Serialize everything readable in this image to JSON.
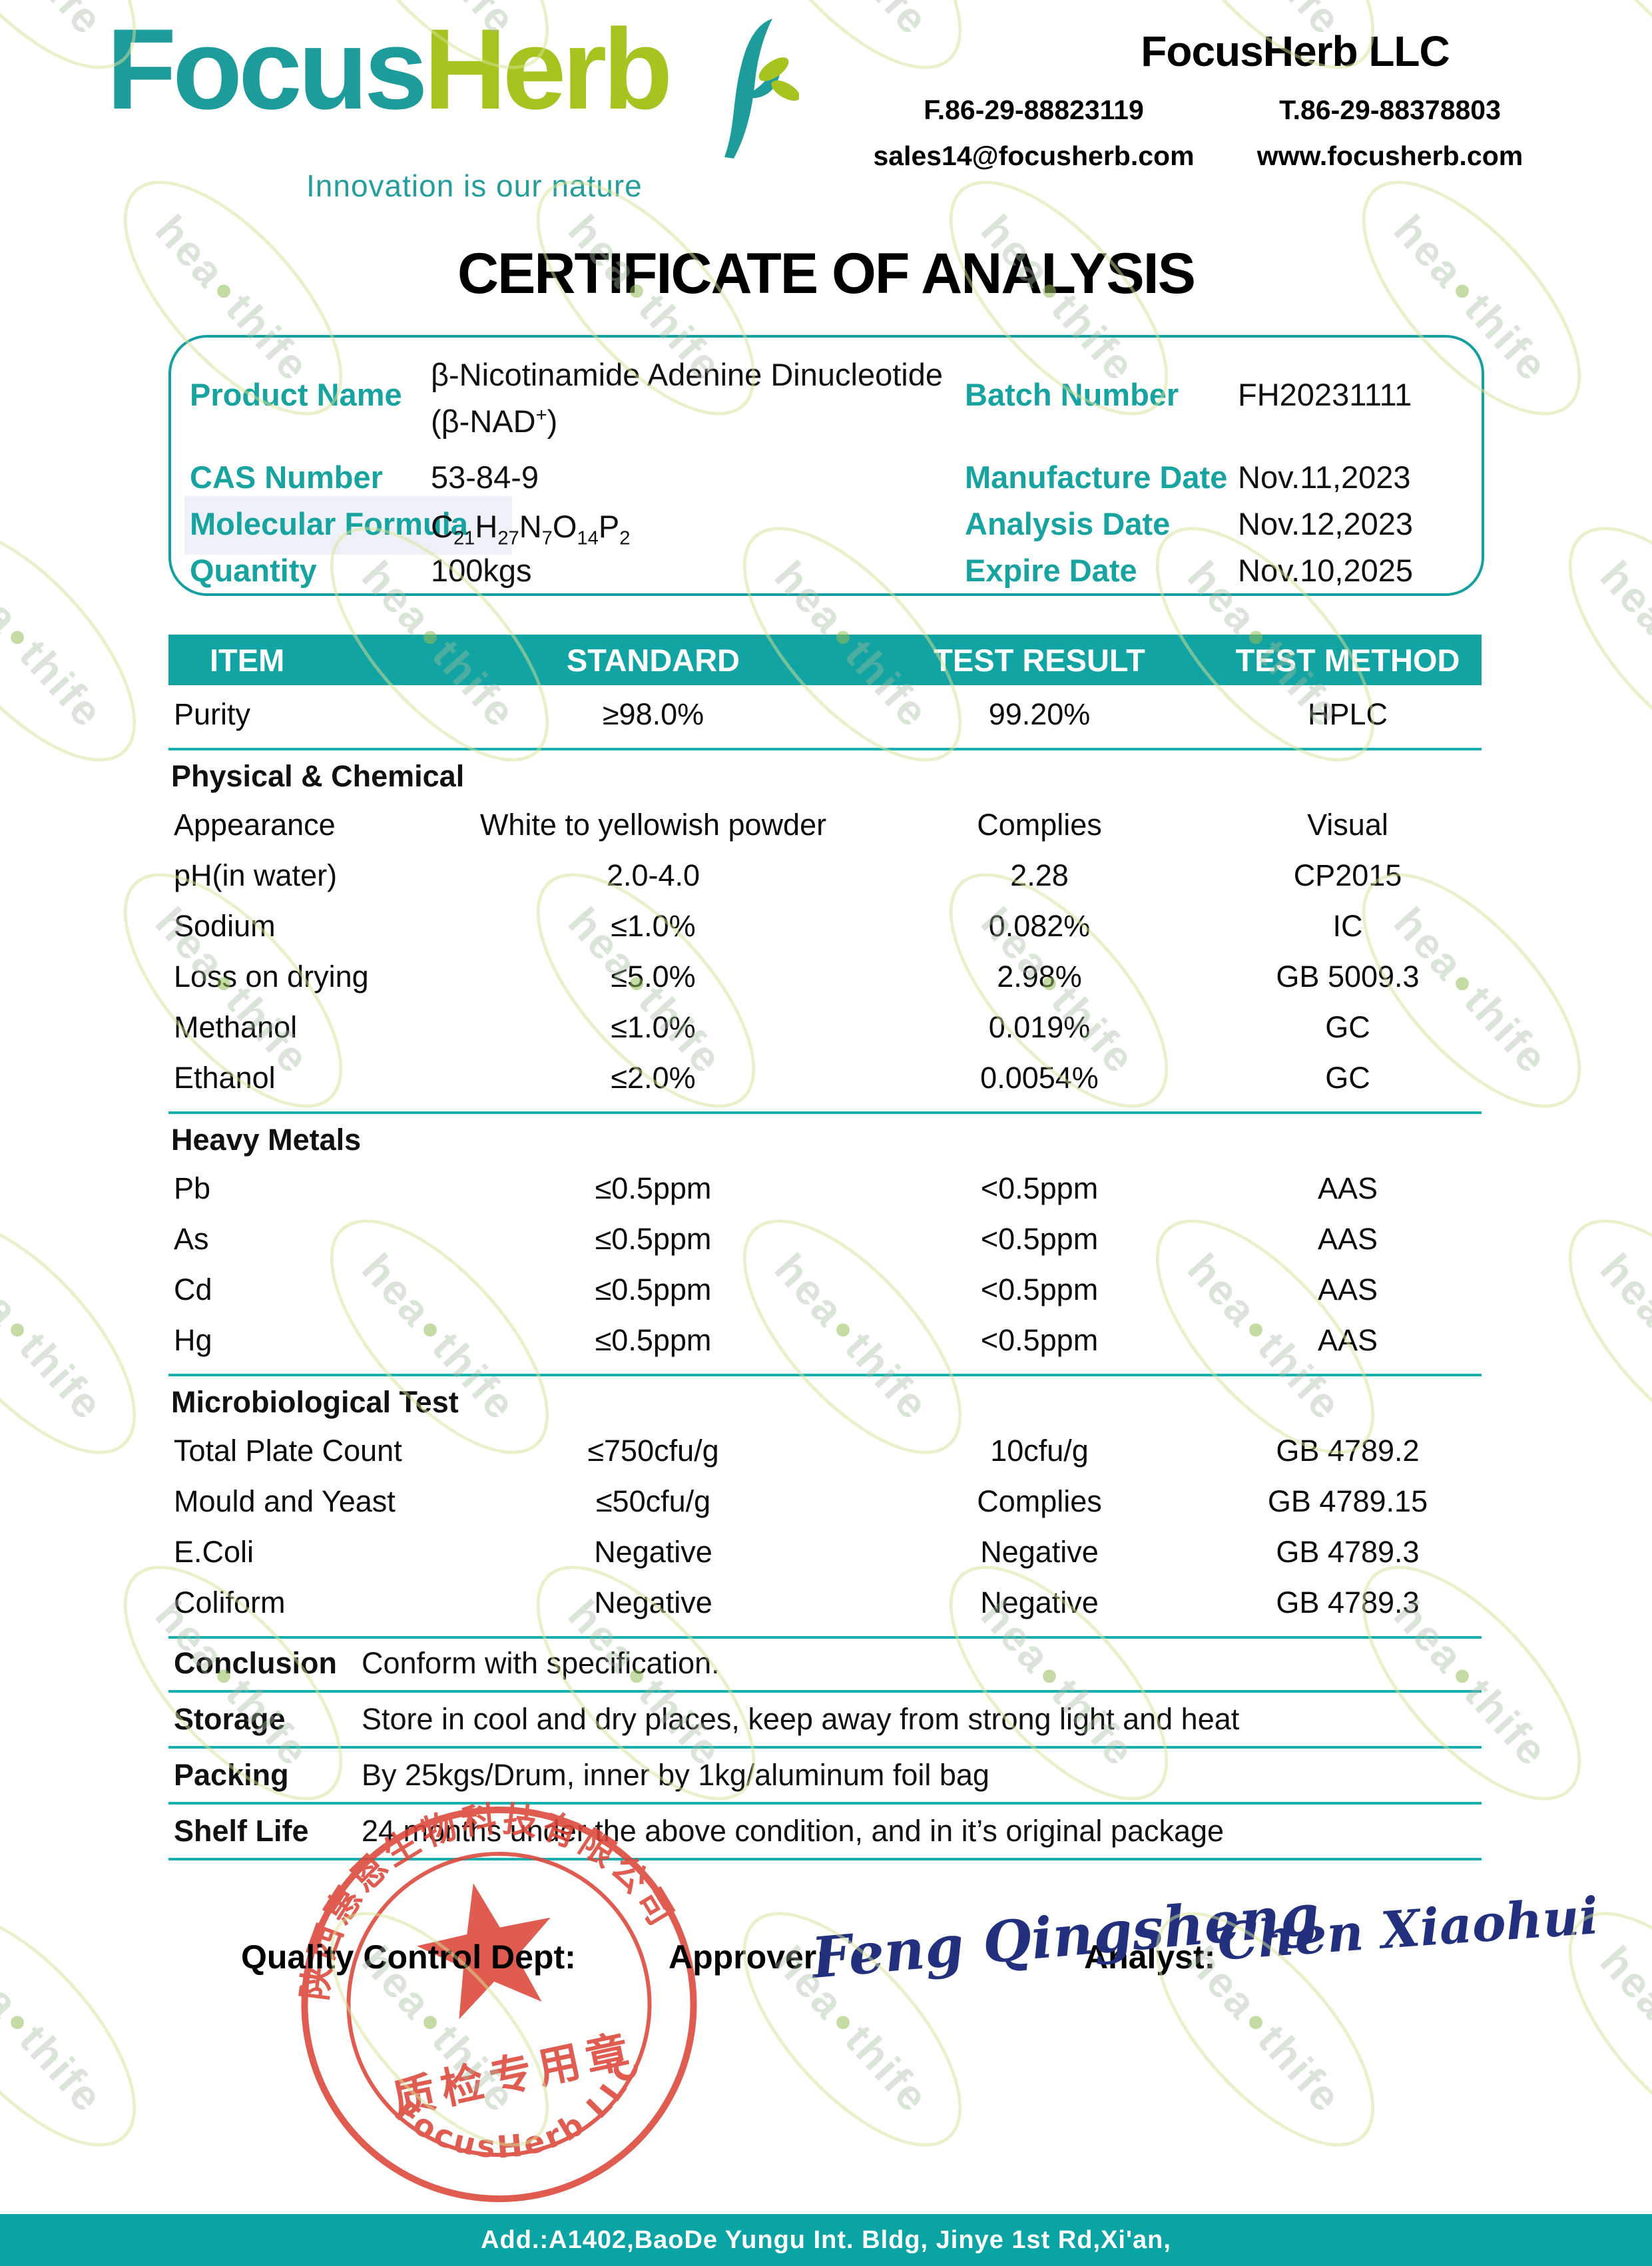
{
  "accent_color": "#12a3a3",
  "logo": {
    "text_focus": "Focus",
    "text_herb": "Herb",
    "tagline": "Innovation is our nature"
  },
  "header": {
    "company": "FocusHerb LLC",
    "fax": "F.86-29-88823119",
    "tel": "T.86-29-88378803",
    "email": "sales14@focusherb.com",
    "website": "www.focusherb.com"
  },
  "title": "CERTIFICATE OF ANALYSIS",
  "product_info": {
    "left": [
      {
        "label": "Product Name",
        "value": "β-Nicotinamide Adenine Dinucleotide",
        "value2": "(β-NAD^+)"
      },
      {
        "label": "CAS Number",
        "value": "53-84-9"
      },
      {
        "label": "Molecular Formula",
        "value": "C_21H_27N_7O_14P_2"
      },
      {
        "label": "Quantity",
        "value": "100kgs"
      }
    ],
    "right": [
      {
        "label": "Batch Number",
        "value": "FH20231111"
      },
      {
        "label": "Manufacture Date",
        "value": "Nov.11,2023"
      },
      {
        "label": "Analysis Date",
        "value": "Nov.12,2023"
      },
      {
        "label": "Expire Date",
        "value": "Nov.10,2025"
      }
    ]
  },
  "table": {
    "headers": [
      "ITEM",
      "STANDARD",
      "TEST RESULT",
      "TEST METHOD"
    ],
    "rows": [
      {
        "type": "data",
        "item": "Purity",
        "standard": "≥98.0%",
        "result": "99.20%",
        "method": "HPLC",
        "divider_after": true
      },
      {
        "type": "section",
        "label": "Physical & Chemical"
      },
      {
        "type": "data",
        "item": "Appearance",
        "standard": "White to yellowish powder",
        "result": "Complies",
        "method": "Visual"
      },
      {
        "type": "data",
        "item": "pH(in water)",
        "standard": "2.0-4.0",
        "result": "2.28",
        "method": "CP2015"
      },
      {
        "type": "data",
        "item": "Sodium",
        "standard": "≤1.0%",
        "result": "0.082%",
        "method": "IC"
      },
      {
        "type": "data",
        "item": "Loss on drying",
        "standard": "≤5.0%",
        "result": "2.98%",
        "method": "GB 5009.3"
      },
      {
        "type": "data",
        "item": "Methanol",
        "standard": "≤1.0%",
        "result": "0.019%",
        "method": "GC"
      },
      {
        "type": "data",
        "item": "Ethanol",
        "standard": "≤2.0%",
        "result": "0.0054%",
        "method": "GC",
        "divider_after": true
      },
      {
        "type": "section",
        "label": "Heavy Metals"
      },
      {
        "type": "data",
        "item": "Pb",
        "standard": "≤0.5ppm",
        "result": "<0.5ppm",
        "method": "AAS"
      },
      {
        "type": "data",
        "item": "As",
        "standard": "≤0.5ppm",
        "result": "<0.5ppm",
        "method": "AAS"
      },
      {
        "type": "data",
        "item": "Cd",
        "standard": "≤0.5ppm",
        "result": "<0.5ppm",
        "method": "AAS"
      },
      {
        "type": "data",
        "item": "Hg",
        "standard": "≤0.5ppm",
        "result": "<0.5ppm",
        "method": "AAS",
        "divider_after": true
      },
      {
        "type": "section",
        "label": "Microbiological Test"
      },
      {
        "type": "data",
        "item": "Total Plate Count",
        "standard": "≤750cfu/g",
        "result": "10cfu/g",
        "method": "GB 4789.2"
      },
      {
        "type": "data",
        "item": "Mould and Yeast",
        "standard": "≤50cfu/g",
        "result": "Complies",
        "method": "GB 4789.15"
      },
      {
        "type": "data",
        "item": "E.Coli",
        "standard": "Negative",
        "result": "Negative",
        "method": "GB 4789.3"
      },
      {
        "type": "data",
        "item": "Coliform",
        "standard": "Negative",
        "result": "Negative",
        "method": "GB 4789.3",
        "divider_after": true
      }
    ]
  },
  "summary": [
    {
      "label": "Conclusion",
      "text": "Conform with specification."
    },
    {
      "label": "Storage",
      "text": "Store in cool and dry places, keep away from strong light and heat"
    },
    {
      "label": "Packing",
      "text": "By 25kgs/Drum, inner by 1kg/aluminum foil bag"
    },
    {
      "label": "Shelf Life",
      "text": "24 months under the above condition, and in it’s original package"
    }
  ],
  "signature": {
    "qc_label": "Quality Control Dept:",
    "approver_label": "Approver:",
    "approver_name": "Feng Qingsheng",
    "analyst_label": "Analyst:",
    "analyst_name": "Chen Xiaohui"
  },
  "stamp": {
    "top_text": "陕西惠恩生物科技有限公司",
    "middle_text": "质检专用章",
    "bottom_text": "FocusHerb  LLC",
    "color": "#dc4638"
  },
  "watermark": {
    "part1": "hea",
    "dot": "●",
    "part2": "thife"
  },
  "footer": {
    "address": "Add.:A1402,BaoDe Yungu Int. Bldg, Jinye 1st Rd,Xi'an,"
  }
}
